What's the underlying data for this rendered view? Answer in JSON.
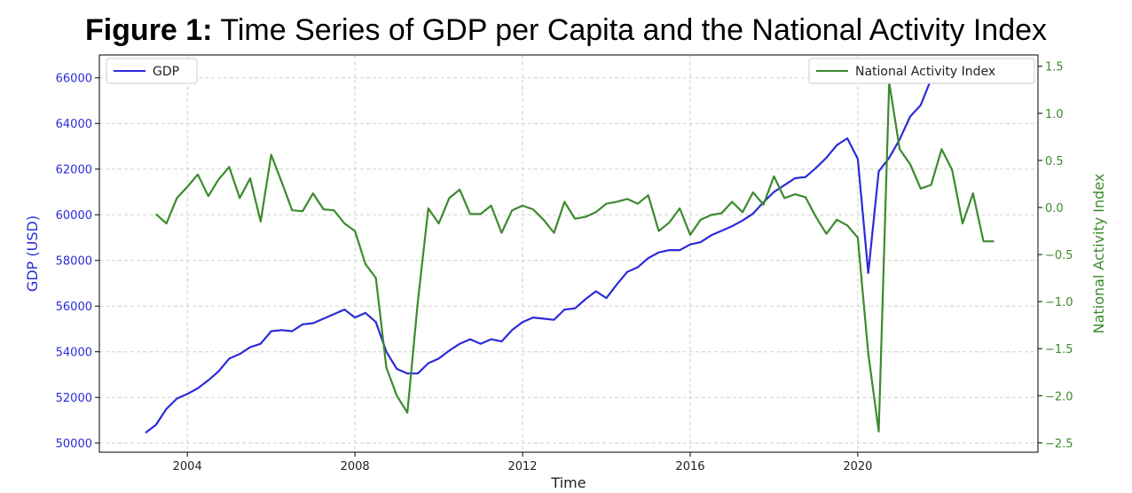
{
  "figure": {
    "label": "Figure 1:",
    "title": "Time Series of GDP per Capita and the National Activity Index"
  },
  "colors": {
    "gdp": "#2b2bd9",
    "nai": "#3c8a2e",
    "grid": "#d0d0d0",
    "axis": "#000000"
  },
  "chart_data": {
    "type": "line",
    "title": "Time Series of GDP per Capita and the National Activity Index",
    "xlabel": "Time",
    "xlim": [
      2001.9,
      2024.3
    ],
    "x_ticks": [
      2004,
      2008,
      2012,
      2016,
      2020
    ],
    "x_tick_labels": [
      "2004",
      "2008",
      "2012",
      "2016",
      "2020"
    ],
    "y_left": {
      "label": "GDP (USD)",
      "lim": [
        49600,
        67000
      ],
      "ticks": [
        50000,
        52000,
        54000,
        56000,
        58000,
        60000,
        62000,
        64000,
        66000
      ],
      "tick_labels": [
        "50000",
        "52000",
        "54000",
        "56000",
        "58000",
        "60000",
        "62000",
        "64000",
        "66000"
      ]
    },
    "y_right": {
      "label": "National Activity Index",
      "lim": [
        -2.6,
        1.62
      ],
      "ticks": [
        -2.5,
        -2.0,
        -1.5,
        -1.0,
        -0.5,
        0.0,
        0.5,
        1.0,
        1.5
      ],
      "tick_labels": [
        "−2.5",
        "−2.0",
        "−1.5",
        "−1.0",
        "−0.5",
        "0.0",
        "0.5",
        "1.0",
        "1.5"
      ]
    },
    "grid": true,
    "legend_left": {
      "placement": "upper-left"
    },
    "legend_right": {
      "placement": "upper-right"
    },
    "series": [
      {
        "name": "GDP",
        "axis": "left",
        "x": [
          2003.0,
          2003.25,
          2003.5,
          2003.75,
          2004.0,
          2004.25,
          2004.5,
          2004.75,
          2005.0,
          2005.25,
          2005.5,
          2005.75,
          2006.0,
          2006.25,
          2006.5,
          2006.75,
          2007.0,
          2007.25,
          2007.5,
          2007.75,
          2008.0,
          2008.25,
          2008.5,
          2008.75,
          2009.0,
          2009.25,
          2009.5,
          2009.75,
          2010.0,
          2010.25,
          2010.5,
          2010.75,
          2011.0,
          2011.25,
          2011.5,
          2011.75,
          2012.0,
          2012.25,
          2012.5,
          2012.75,
          2013.0,
          2013.25,
          2013.5,
          2013.75,
          2014.0,
          2014.25,
          2014.5,
          2014.75,
          2015.0,
          2015.25,
          2015.5,
          2015.75,
          2016.0,
          2016.25,
          2016.5,
          2016.75,
          2017.0,
          2017.25,
          2017.5,
          2017.75,
          2018.0,
          2018.25,
          2018.5,
          2018.75,
          2019.0,
          2019.25,
          2019.5,
          2019.75,
          2020.0,
          2020.25,
          2020.5,
          2020.75,
          2021.0,
          2021.25,
          2021.5,
          2021.75,
          2022.0,
          2022.25,
          2022.5,
          2022.75
        ],
        "values": [
          50450,
          50800,
          51500,
          51950,
          52150,
          52400,
          52750,
          53150,
          53700,
          53900,
          54200,
          54350,
          54900,
          54950,
          54900,
          55200,
          55250,
          55450,
          55650,
          55850,
          55500,
          55700,
          55300,
          54000,
          53250,
          53050,
          53050,
          53500,
          53700,
          54050,
          54350,
          54550,
          54350,
          54550,
          54450,
          54950,
          55300,
          55500,
          55450,
          55400,
          55850,
          55900,
          56300,
          56650,
          56350,
          56950,
          57500,
          57700,
          58100,
          58350,
          58450,
          58450,
          58700,
          58800,
          59100,
          59300,
          59500,
          59750,
          60050,
          60550,
          61000,
          61300,
          61600,
          61650,
          62050,
          62500,
          63050,
          63350,
          62450,
          57450,
          61900,
          62500,
          63300,
          64300,
          64800,
          65950,
          65800,
          65800,
          66100,
          66500
        ]
      },
      {
        "name": "National Activity Index",
        "axis": "right",
        "x": [
          2003.25,
          2003.5,
          2003.75,
          2004.0,
          2004.25,
          2004.5,
          2004.75,
          2005.0,
          2005.25,
          2005.5,
          2005.75,
          2006.0,
          2006.25,
          2006.5,
          2006.75,
          2007.0,
          2007.25,
          2007.5,
          2007.75,
          2008.0,
          2008.25,
          2008.5,
          2008.75,
          2009.0,
          2009.25,
          2009.5,
          2009.75,
          2010.0,
          2010.25,
          2010.5,
          2010.75,
          2011.0,
          2011.25,
          2011.5,
          2011.75,
          2012.0,
          2012.25,
          2012.5,
          2012.75,
          2013.0,
          2013.25,
          2013.5,
          2013.75,
          2014.0,
          2014.25,
          2014.5,
          2014.75,
          2015.0,
          2015.25,
          2015.5,
          2015.75,
          2016.0,
          2016.25,
          2016.5,
          2016.75,
          2017.0,
          2017.25,
          2017.5,
          2017.75,
          2018.0,
          2018.25,
          2018.5,
          2018.75,
          2019.0,
          2019.25,
          2019.5,
          2019.75,
          2020.0,
          2020.25,
          2020.5,
          2020.75,
          2021.0,
          2021.25,
          2021.5,
          2021.75,
          2022.0,
          2022.25,
          2022.5,
          2022.75,
          2023.0,
          2023.25
        ],
        "values": [
          -0.07,
          -0.17,
          0.1,
          0.22,
          0.35,
          0.12,
          0.3,
          0.43,
          0.1,
          0.31,
          -0.15,
          0.56,
          0.27,
          -0.03,
          -0.04,
          0.15,
          -0.02,
          -0.03,
          -0.17,
          -0.25,
          -0.6,
          -0.75,
          -1.7,
          -2.0,
          -2.18,
          -1.0,
          -0.01,
          -0.17,
          0.1,
          0.19,
          -0.07,
          -0.07,
          0.02,
          -0.27,
          -0.03,
          0.02,
          -0.02,
          -0.13,
          -0.27,
          0.06,
          -0.12,
          -0.1,
          -0.05,
          0.04,
          0.06,
          0.09,
          0.04,
          0.13,
          -0.25,
          -0.16,
          -0.01,
          -0.29,
          -0.13,
          -0.08,
          -0.06,
          0.06,
          -0.05,
          0.16,
          0.03,
          0.33,
          0.1,
          0.14,
          0.11,
          -0.1,
          -0.28,
          -0.13,
          -0.19,
          -0.32,
          -1.55,
          -2.38,
          1.33,
          0.62,
          0.46,
          0.2,
          0.24,
          0.62,
          0.4,
          -0.17,
          0.15,
          -0.36,
          -0.36
        ]
      }
    ]
  }
}
